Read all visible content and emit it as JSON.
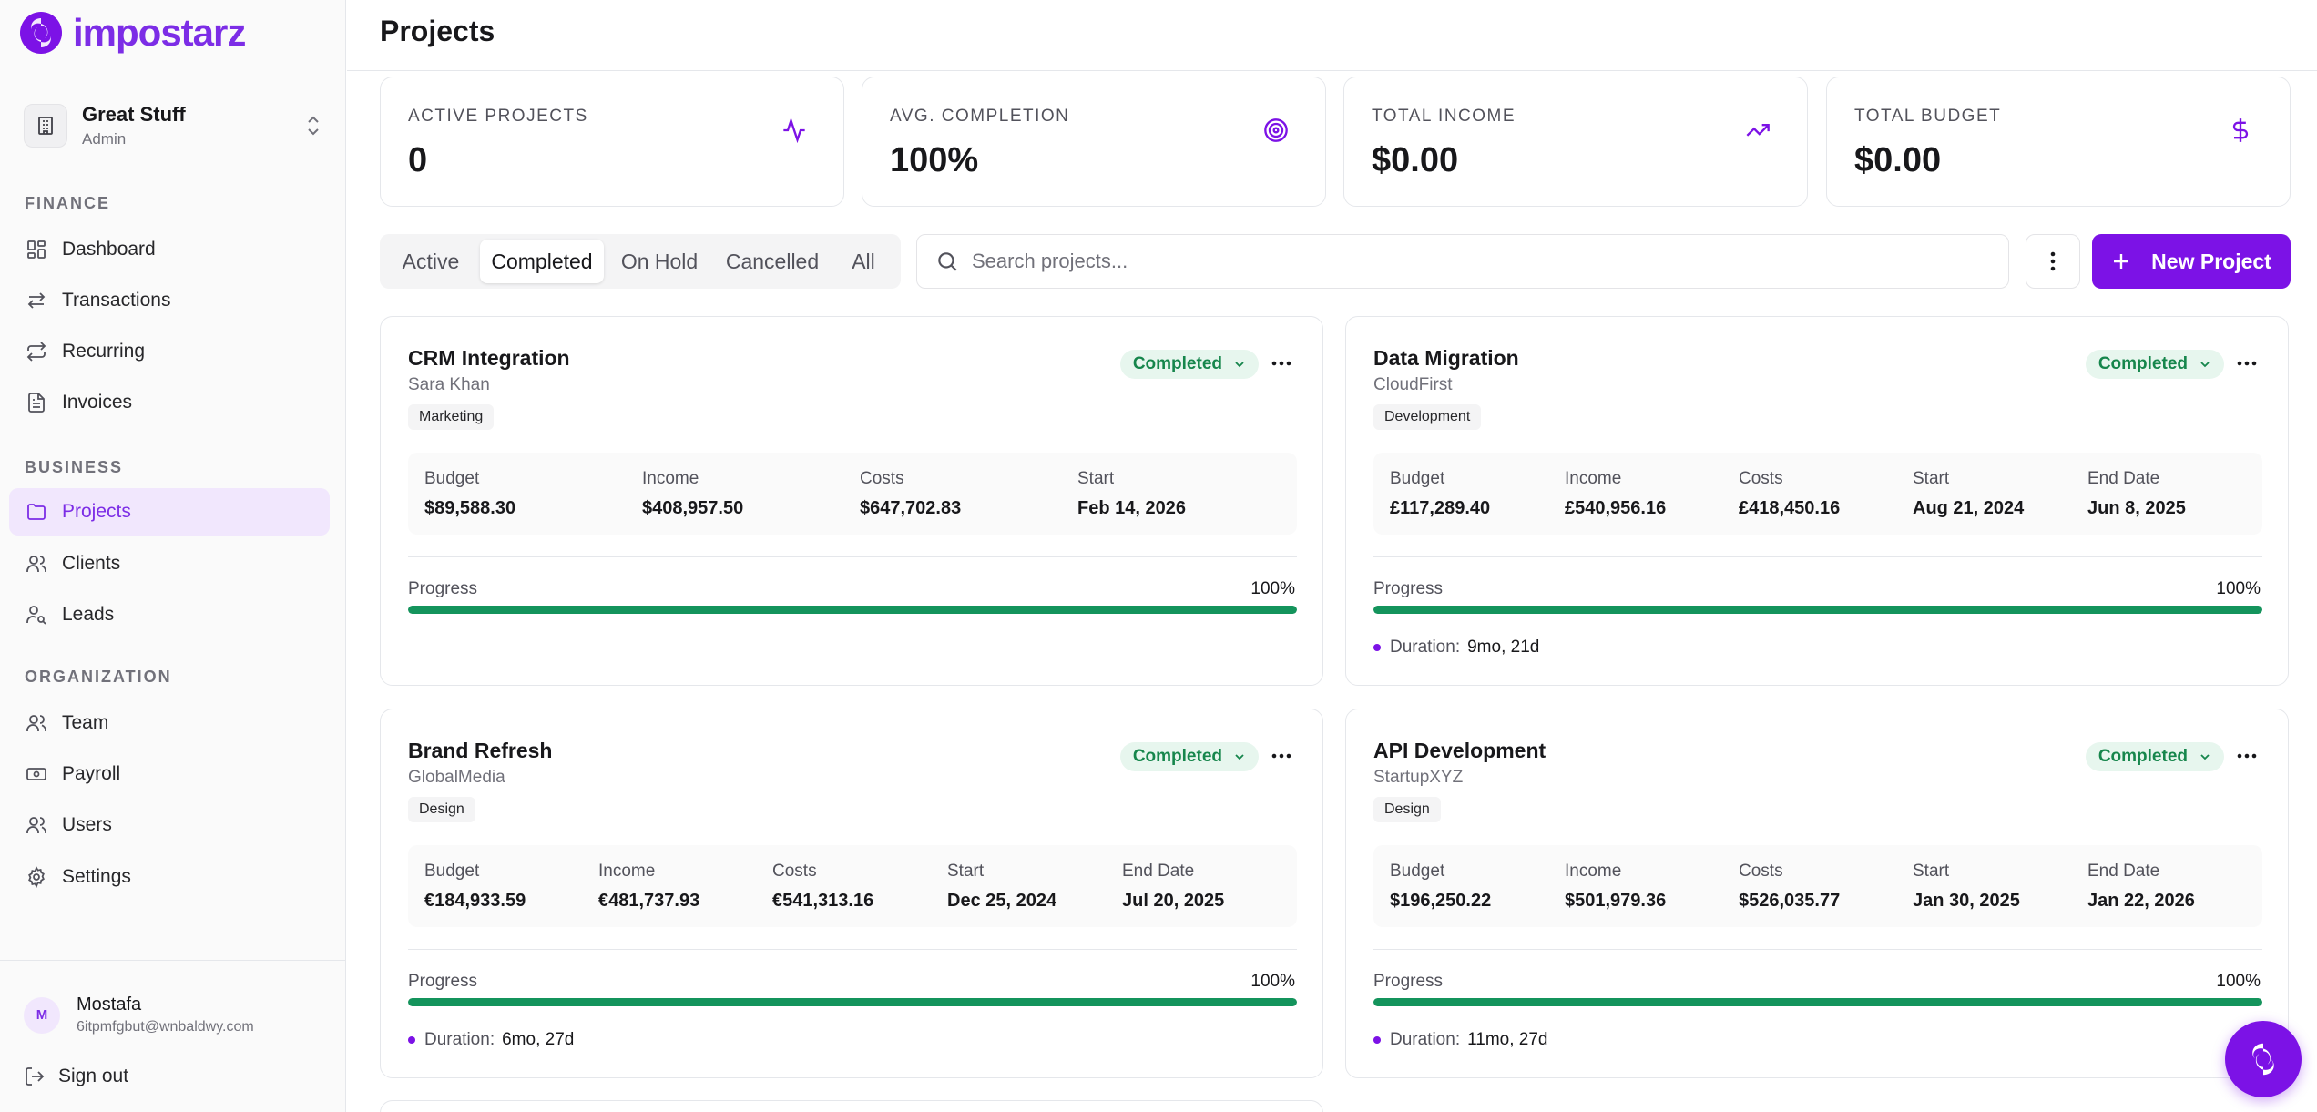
{
  "brand": {
    "name": "impostarz",
    "accent": "#7c12e6"
  },
  "workspace": {
    "name": "Great Stuff",
    "role": "Admin"
  },
  "sidebar": {
    "sections": [
      {
        "label": "FINANCE",
        "items": [
          {
            "label": "Dashboard",
            "icon": "dashboard-icon"
          },
          {
            "label": "Transactions",
            "icon": "arrows-left-right-icon"
          },
          {
            "label": "Recurring",
            "icon": "repeat-icon"
          },
          {
            "label": "Invoices",
            "icon": "file-text-icon"
          }
        ]
      },
      {
        "label": "BUSINESS",
        "items": [
          {
            "label": "Projects",
            "icon": "folder-icon",
            "active": true
          },
          {
            "label": "Clients",
            "icon": "users-icon"
          },
          {
            "label": "Leads",
            "icon": "user-search-icon"
          }
        ]
      },
      {
        "label": "ORGANIZATION",
        "items": [
          {
            "label": "Team",
            "icon": "users-icon"
          },
          {
            "label": "Payroll",
            "icon": "banknote-icon"
          },
          {
            "label": "Users",
            "icon": "users-icon"
          },
          {
            "label": "Settings",
            "icon": "gear-icon"
          }
        ]
      }
    ]
  },
  "user": {
    "initial": "M",
    "name": "Mostafa",
    "email": "6itpmfgbut@wnbaldwy.com",
    "signout": "Sign out"
  },
  "header": {
    "title": "Projects"
  },
  "stats": [
    {
      "label": "ACTIVE PROJECTS",
      "value": "0",
      "icon": "activity-icon"
    },
    {
      "label": "AVG. COMPLETION",
      "value": "100%",
      "icon": "target-icon"
    },
    {
      "label": "TOTAL INCOME",
      "value": "$0.00",
      "icon": "trending-up-icon"
    },
    {
      "label": "TOTAL BUDGET",
      "value": "$0.00",
      "icon": "dollar-icon"
    }
  ],
  "filters": {
    "tabs": [
      "Active",
      "Completed",
      "On Hold",
      "Cancelled",
      "All"
    ],
    "selected": "Completed",
    "search_placeholder": "Search projects...",
    "new_button": "New Project"
  },
  "projects": [
    {
      "title": "CRM Integration",
      "client": "Sara Khan",
      "tag": "Marketing",
      "status": "Completed",
      "metrics": [
        {
          "label": "Budget",
          "value": "$89,588.30"
        },
        {
          "label": "Income",
          "value": "$408,957.50"
        },
        {
          "label": "Costs",
          "value": "$647,702.83"
        },
        {
          "label": "Start",
          "value": "Feb 14, 2026"
        }
      ],
      "progress_label": "Progress",
      "progress": 100,
      "progress_text": "100%",
      "duration": null
    },
    {
      "title": "Data Migration",
      "client": "CloudFirst",
      "tag": "Development",
      "status": "Completed",
      "metrics": [
        {
          "label": "Budget",
          "value": "£117,289.40"
        },
        {
          "label": "Income",
          "value": "£540,956.16"
        },
        {
          "label": "Costs",
          "value": "£418,450.16"
        },
        {
          "label": "Start",
          "value": "Aug 21, 2024"
        },
        {
          "label": "End Date",
          "value": "Jun 8, 2025"
        }
      ],
      "progress_label": "Progress",
      "progress": 100,
      "progress_text": "100%",
      "duration": {
        "label": "Duration:",
        "value": "9mo, 21d"
      }
    },
    {
      "title": "Brand Refresh",
      "client": "GlobalMedia",
      "tag": "Design",
      "status": "Completed",
      "metrics": [
        {
          "label": "Budget",
          "value": "€184,933.59"
        },
        {
          "label": "Income",
          "value": "€481,737.93"
        },
        {
          "label": "Costs",
          "value": "€541,313.16"
        },
        {
          "label": "Start",
          "value": "Dec 25, 2024"
        },
        {
          "label": "End Date",
          "value": "Jul 20, 2025"
        }
      ],
      "progress_label": "Progress",
      "progress": 100,
      "progress_text": "100%",
      "duration": {
        "label": "Duration:",
        "value": "6mo, 27d"
      }
    },
    {
      "title": "API Development",
      "client": "StartupXYZ",
      "tag": "Design",
      "status": "Completed",
      "metrics": [
        {
          "label": "Budget",
          "value": "$196,250.22"
        },
        {
          "label": "Income",
          "value": "$501,979.36"
        },
        {
          "label": "Costs",
          "value": "$526,035.77"
        },
        {
          "label": "Start",
          "value": "Jan 30, 2025"
        },
        {
          "label": "End Date",
          "value": "Jan 22, 2026"
        }
      ],
      "progress_label": "Progress",
      "progress": 100,
      "progress_text": "100%",
      "duration": {
        "label": "Duration:",
        "value": "11mo, 27d"
      }
    }
  ]
}
